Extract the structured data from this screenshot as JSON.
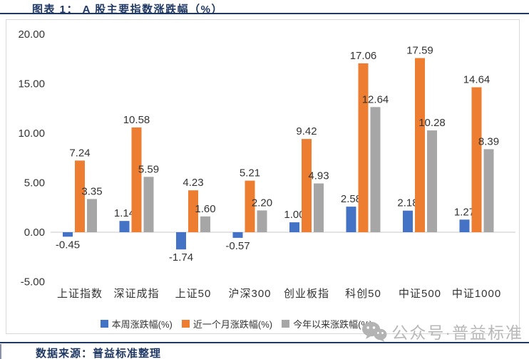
{
  "header": {
    "title": "图表 1：  A 股主要指数涨跌幅（%）"
  },
  "footer": {
    "source_label": "数据来源：普益标准整理"
  },
  "watermark": {
    "icon": "wechat-icon",
    "text": "公众号·普益标准"
  },
  "colors": {
    "navy": "#1F3864",
    "blue": "#4472C4",
    "orange": "#ED7D31",
    "gray": "#A6A6A6",
    "axis": "#C9C9C9",
    "border": "#D9D9D9",
    "label": "#333333",
    "watermark": "#B8B8B8"
  },
  "chart_data": {
    "type": "bar",
    "title": "A股主要指数涨跌幅（%）",
    "categories": [
      "上证指数",
      "深证成指",
      "上证50",
      "沪深300",
      "创业板指",
      "科创50",
      "中证500",
      "中证1000"
    ],
    "series": [
      {
        "name": "本周涨跌幅(%)",
        "color": "#4472C4",
        "values": [
          -0.45,
          1.14,
          -1.74,
          -0.57,
          1.0,
          2.58,
          2.18,
          1.27
        ]
      },
      {
        "name": "近一个月涨跌幅(%)",
        "color": "#ED7D31",
        "values": [
          7.24,
          10.58,
          4.23,
          5.21,
          9.42,
          17.06,
          17.59,
          14.64
        ]
      },
      {
        "name": "今年以来涨跌幅(%)",
        "color": "#A6A6A6",
        "values": [
          3.35,
          5.59,
          1.6,
          2.2,
          4.93,
          12.64,
          10.28,
          8.39
        ]
      }
    ],
    "xlabel": "",
    "ylabel": "",
    "ylim": [
      -5,
      20
    ],
    "ytick_step": 5,
    "ytick_labels": [
      "20.00",
      "15.00",
      "10.00",
      "5.00",
      "0.00",
      "-5.00"
    ],
    "grid": false,
    "value_labels": true,
    "legend_position": "bottom"
  }
}
